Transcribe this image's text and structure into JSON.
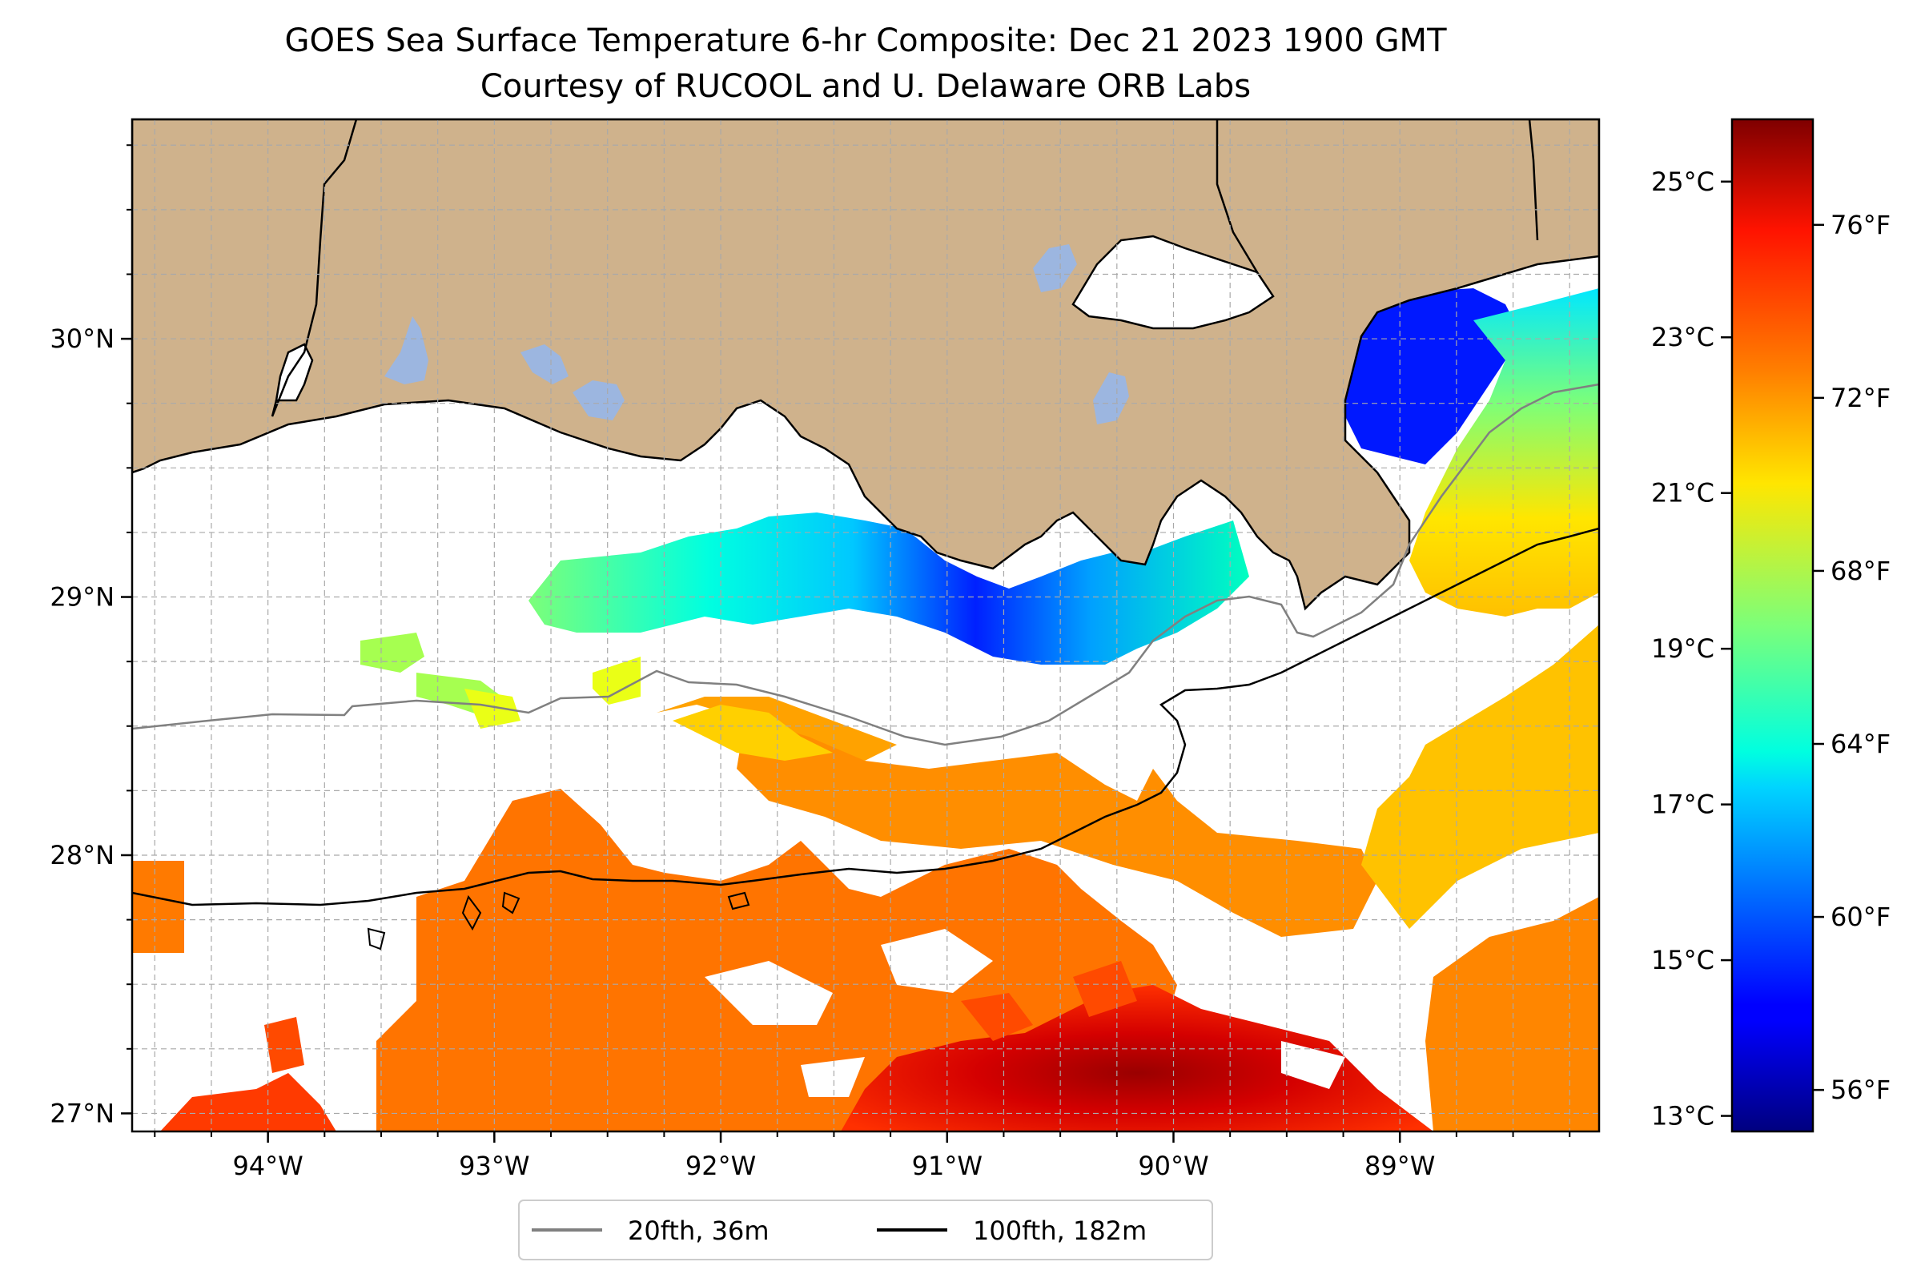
{
  "title": {
    "line1": "GOES Sea Surface Temperature 6-hr Composite: Dec 21 2023 1900 GMT",
    "line2": "Courtesy of RUCOOL and U. Delaware ORB Labs"
  },
  "map": {
    "lon_range": [
      -94.6,
      -88.12
    ],
    "lat_range": [
      26.93,
      30.85
    ],
    "lon_ticks": [
      {
        "value": -94,
        "label": "94°W"
      },
      {
        "value": -93,
        "label": "93°W"
      },
      {
        "value": -92,
        "label": "92°W"
      },
      {
        "value": -91,
        "label": "91°W"
      },
      {
        "value": -90,
        "label": "90°W"
      },
      {
        "value": -89,
        "label": "89°W"
      }
    ],
    "lat_ticks": [
      {
        "value": 30,
        "label": "30°N"
      },
      {
        "value": 29,
        "label": "29°N"
      },
      {
        "value": 28,
        "label": "28°N"
      },
      {
        "value": 27,
        "label": "27°N"
      }
    ],
    "gridlines": true,
    "colors": {
      "land": "#cfb28c",
      "lakes": "#9cb6e0",
      "coastline": "#000000",
      "isobath_20fth": "#808080",
      "isobath_100fth": "#000000"
    }
  },
  "colorbar": {
    "colormap": "jet",
    "celsius_range": [
      12.8,
      25.8
    ],
    "celsius_ticks": [
      {
        "value": 13,
        "label": "13°C"
      },
      {
        "value": 15,
        "label": "15°C"
      },
      {
        "value": 17,
        "label": "17°C"
      },
      {
        "value": 19,
        "label": "19°C"
      },
      {
        "value": 21,
        "label": "21°C"
      },
      {
        "value": 23,
        "label": "23°C"
      },
      {
        "value": 25,
        "label": "25°C"
      }
    ],
    "fahrenheit_ticks": [
      {
        "value": 56,
        "label": "56°F"
      },
      {
        "value": 60,
        "label": "60°F"
      },
      {
        "value": 64,
        "label": "64°F"
      },
      {
        "value": 68,
        "label": "68°F"
      },
      {
        "value": 72,
        "label": "72°F"
      },
      {
        "value": 76,
        "label": "76°F"
      }
    ]
  },
  "legend": {
    "items": [
      {
        "label": "20fth, 36m",
        "color": "#808080"
      },
      {
        "label": "100fth, 182m",
        "color": "#000000"
      }
    ],
    "placement": "bottom-center"
  }
}
